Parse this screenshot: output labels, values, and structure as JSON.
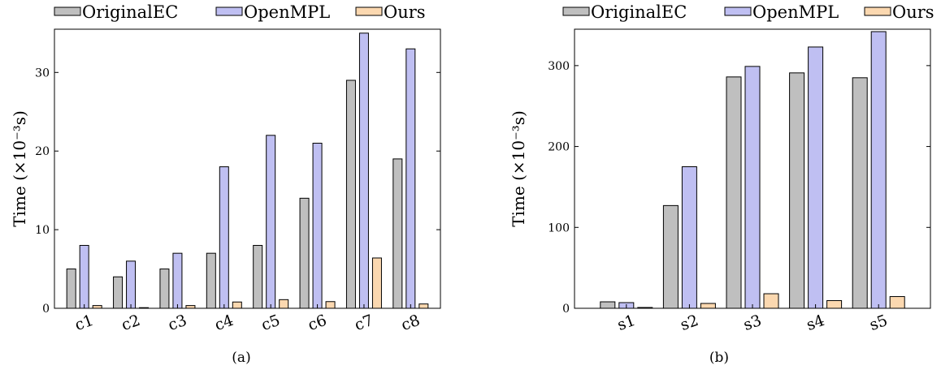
{
  "colors": {
    "OriginalEC": "#bfbfbf",
    "OpenMPL": "#bfbff2",
    "Ours": "#fbd8b0"
  },
  "chart_data": [
    {
      "type": "bar",
      "caption": "(a)",
      "categories": [
        "c1",
        "c2",
        "c3",
        "c4",
        "c5",
        "c6",
        "c7",
        "c8"
      ],
      "series": [
        {
          "name": "OriginalEC",
          "values": [
            5,
            4,
            5,
            7,
            8,
            14,
            29,
            19
          ]
        },
        {
          "name": "OpenMPL",
          "values": [
            8,
            6,
            7,
            18,
            22,
            21,
            35,
            33
          ]
        },
        {
          "name": "Ours",
          "values": [
            0.35,
            0.08,
            0.35,
            0.8,
            1.1,
            0.85,
            6.4,
            0.55
          ]
        }
      ],
      "ylabel": "Time (×10⁻³s)",
      "ylim": [
        0,
        35.5
      ],
      "yticks": [
        "0",
        "10",
        "20",
        "30"
      ],
      "ytick_values": [
        0,
        10,
        20,
        30
      ],
      "grid": false,
      "legend": "top"
    },
    {
      "type": "bar",
      "caption": "(b)",
      "categories": [
        "s1",
        "s2",
        "s3",
        "s4",
        "s5"
      ],
      "series": [
        {
          "name": "OriginalEC",
          "values": [
            8,
            127,
            286,
            291,
            285
          ]
        },
        {
          "name": "OpenMPL",
          "values": [
            7,
            175,
            299,
            323,
            342
          ]
        },
        {
          "name": "Ours",
          "values": [
            1,
            6,
            18,
            9.5,
            14.5
          ]
        }
      ],
      "ylabel": "Time (×10⁻³s)",
      "ylim": [
        0,
        345
      ],
      "yticks": [
        "0",
        "100",
        "200",
        "300"
      ],
      "ytick_values": [
        0,
        100,
        200,
        300
      ],
      "grid": false,
      "legend": "top"
    }
  ]
}
